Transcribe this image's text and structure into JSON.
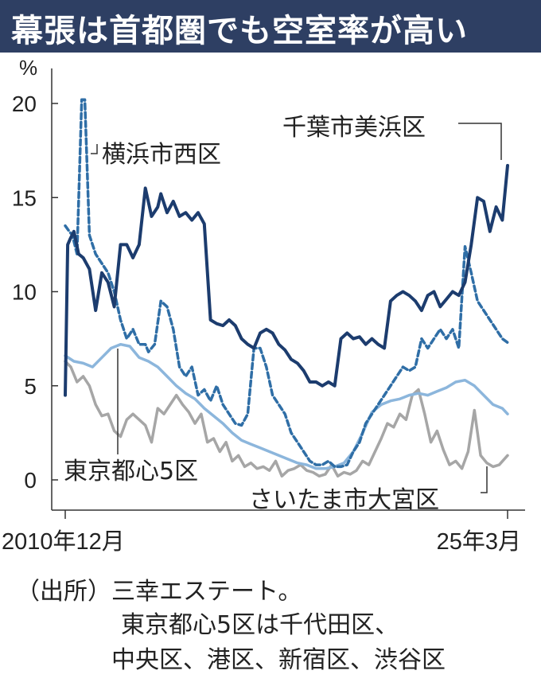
{
  "title": "幕張は首都圏でも空室率が高い",
  "chart_data": {
    "type": "line",
    "y_unit": "%",
    "ylim": [
      0,
      20
    ],
    "yticks": [
      0,
      5,
      10,
      15,
      20
    ],
    "x_start_label": "2010年12月",
    "x_end_label": "25年3月",
    "x_range": [
      "2010-12",
      "2025-03"
    ],
    "grid": false,
    "colors": {
      "mihama": "#1c3c6e",
      "nishi": "#2f6ea6",
      "tokyo5": "#8cb6dc",
      "saitama": "#a6a6a6"
    },
    "series": [
      {
        "name": "千葉市美浜区",
        "key": "mihama",
        "style": "solid",
        "x": [
          2010.92,
          2011.0,
          2011.08,
          2011.2,
          2011.35,
          2011.5,
          2011.7,
          2011.9,
          2012.1,
          2012.3,
          2012.5,
          2012.7,
          2012.9,
          2013.1,
          2013.3,
          2013.5,
          2013.7,
          2013.9,
          2014.0,
          2014.2,
          2014.4,
          2014.6,
          2014.8,
          2015.0,
          2015.2,
          2015.4,
          2015.6,
          2015.8,
          2016.0,
          2016.2,
          2016.4,
          2016.6,
          2016.8,
          2017.0,
          2017.2,
          2017.4,
          2017.6,
          2017.8,
          2018.0,
          2018.2,
          2018.4,
          2018.6,
          2018.8,
          2019.0,
          2019.2,
          2019.4,
          2019.6,
          2019.8,
          2020.0,
          2020.2,
          2020.4,
          2020.6,
          2020.8,
          2021.0,
          2021.2,
          2021.4,
          2021.6,
          2021.8,
          2022.0,
          2022.2,
          2022.4,
          2022.6,
          2022.8,
          2023.0,
          2023.2,
          2023.4,
          2023.6,
          2023.8,
          2024.0,
          2024.2,
          2024.4,
          2024.6,
          2024.8,
          2025.0,
          2025.17
        ],
        "y": [
          4.5,
          12.5,
          12.8,
          13.2,
          12.0,
          11.8,
          11.2,
          9.0,
          11.0,
          10.5,
          9.2,
          12.5,
          12.5,
          11.8,
          12.5,
          15.5,
          14.0,
          14.5,
          15.2,
          14.2,
          14.8,
          14.0,
          14.2,
          13.8,
          14.2,
          13.6,
          8.5,
          8.3,
          8.2,
          8.5,
          8.2,
          7.5,
          7.2,
          7.0,
          7.8,
          8.0,
          7.8,
          7.2,
          6.9,
          6.4,
          6.2,
          5.8,
          5.2,
          5.2,
          5.0,
          5.2,
          5.0,
          7.5,
          7.8,
          7.5,
          7.6,
          7.2,
          7.5,
          7.2,
          7.0,
          9.5,
          9.8,
          10.0,
          9.8,
          9.5,
          9.0,
          9.8,
          10.0,
          9.2,
          9.6,
          10.0,
          9.8,
          10.5,
          12.5,
          15.0,
          14.8,
          13.2,
          14.5,
          13.8,
          16.7
        ]
      },
      {
        "name": "横浜市西区",
        "key": "nishi",
        "style": "dashed",
        "x": [
          2010.92,
          2011.05,
          2011.15,
          2011.3,
          2011.45,
          2011.55,
          2011.7,
          2011.9,
          2012.1,
          2012.3,
          2012.5,
          2012.7,
          2012.9,
          2013.1,
          2013.3,
          2013.5,
          2013.6,
          2013.8,
          2014.0,
          2014.2,
          2014.4,
          2014.6,
          2014.8,
          2015.0,
          2015.2,
          2015.4,
          2015.6,
          2015.8,
          2016.0,
          2016.2,
          2016.4,
          2016.6,
          2016.8,
          2017.0,
          2017.2,
          2017.4,
          2017.6,
          2017.8,
          2018.0,
          2018.2,
          2018.4,
          2018.6,
          2018.8,
          2019.0,
          2019.2,
          2019.4,
          2019.6,
          2019.8,
          2020.0,
          2020.2,
          2020.4,
          2020.6,
          2020.8,
          2021.0,
          2021.2,
          2021.4,
          2021.6,
          2021.8,
          2022.0,
          2022.2,
          2022.4,
          2022.6,
          2022.8,
          2023.0,
          2023.2,
          2023.4,
          2023.6,
          2023.8,
          2024.0,
          2024.2,
          2024.4,
          2024.6,
          2024.8,
          2025.0,
          2025.17
        ],
        "y": [
          13.5,
          13.2,
          13.0,
          12.0,
          20.2,
          20.2,
          13.0,
          12.0,
          11.5,
          11.0,
          10.0,
          8.5,
          7.5,
          8.0,
          7.2,
          7.2,
          6.8,
          7.2,
          9.5,
          9.2,
          8.0,
          6.0,
          5.5,
          6.0,
          4.5,
          4.8,
          4.2,
          5.0,
          4.0,
          3.5,
          3.0,
          2.9,
          3.5,
          7.0,
          7.0,
          6.0,
          4.5,
          4.0,
          3.5,
          2.5,
          2.0,
          1.5,
          1.0,
          0.8,
          0.8,
          1.0,
          0.7,
          0.7,
          0.8,
          1.5,
          2.0,
          3.0,
          3.5,
          4.0,
          4.5,
          5.0,
          5.5,
          6.0,
          5.8,
          6.0,
          7.5,
          7.0,
          7.5,
          8.0,
          7.5,
          8.0,
          7.0,
          12.4,
          11.0,
          9.5,
          9.0,
          8.5,
          8.0,
          7.5,
          7.3
        ]
      },
      {
        "name": "東京都心5区",
        "key": "tokyo5",
        "style": "solid",
        "x": [
          2010.92,
          2011.2,
          2011.5,
          2011.8,
          2012.1,
          2012.4,
          2012.7,
          2013.0,
          2013.3,
          2013.6,
          2013.9,
          2014.2,
          2014.5,
          2014.8,
          2015.1,
          2015.4,
          2015.7,
          2016.0,
          2016.3,
          2016.6,
          2016.9,
          2017.2,
          2017.5,
          2017.8,
          2018.1,
          2018.4,
          2018.7,
          2019.0,
          2019.3,
          2019.6,
          2019.9,
          2020.2,
          2020.5,
          2020.8,
          2021.1,
          2021.4,
          2021.7,
          2022.0,
          2022.3,
          2022.6,
          2022.9,
          2023.2,
          2023.5,
          2023.8,
          2024.1,
          2024.4,
          2024.7,
          2025.0,
          2025.17
        ],
        "y": [
          6.6,
          6.3,
          6.2,
          6.0,
          6.5,
          7.0,
          7.2,
          7.1,
          6.5,
          6.3,
          6.0,
          5.5,
          5.0,
          4.6,
          4.3,
          3.8,
          3.4,
          3.0,
          2.5,
          2.1,
          1.9,
          1.7,
          1.5,
          1.3,
          1.1,
          0.9,
          0.8,
          0.6,
          0.6,
          0.7,
          0.9,
          1.5,
          2.5,
          3.6,
          4.0,
          4.2,
          4.3,
          4.5,
          4.6,
          4.5,
          4.7,
          4.9,
          5.2,
          5.3,
          5.0,
          4.5,
          4.0,
          3.8,
          3.5
        ]
      },
      {
        "name": "さいたま市大宮区",
        "key": "saitama",
        "style": "solid",
        "x": [
          2010.92,
          2011.1,
          2011.3,
          2011.5,
          2011.7,
          2011.9,
          2012.1,
          2012.3,
          2012.5,
          2012.7,
          2012.9,
          2013.1,
          2013.3,
          2013.5,
          2013.7,
          2013.9,
          2014.1,
          2014.3,
          2014.5,
          2014.7,
          2014.9,
          2015.1,
          2015.3,
          2015.5,
          2015.7,
          2015.9,
          2016.1,
          2016.3,
          2016.5,
          2016.7,
          2016.9,
          2017.1,
          2017.3,
          2017.5,
          2017.7,
          2017.9,
          2018.1,
          2018.3,
          2018.5,
          2018.7,
          2018.9,
          2019.1,
          2019.3,
          2019.5,
          2019.7,
          2019.9,
          2020.1,
          2020.3,
          2020.5,
          2020.7,
          2020.9,
          2021.1,
          2021.3,
          2021.5,
          2021.7,
          2021.9,
          2022.1,
          2022.3,
          2022.5,
          2022.7,
          2022.9,
          2023.1,
          2023.3,
          2023.5,
          2023.7,
          2023.9,
          2024.1,
          2024.3,
          2024.5,
          2024.7,
          2024.9,
          2025.17
        ],
        "y": [
          6.3,
          6.0,
          5.2,
          5.5,
          5.0,
          4.0,
          3.4,
          3.5,
          2.6,
          2.3,
          3.2,
          3.5,
          3.2,
          2.9,
          2.0,
          3.8,
          3.5,
          4.0,
          4.5,
          4.0,
          3.6,
          3.0,
          3.5,
          2.0,
          2.2,
          1.5,
          2.0,
          1.0,
          1.3,
          0.7,
          0.9,
          0.6,
          0.7,
          0.5,
          1.0,
          0.2,
          0.5,
          0.6,
          0.8,
          0.5,
          0.4,
          0.2,
          0.3,
          0.8,
          0.2,
          0.4,
          0.3,
          0.5,
          1.0,
          0.8,
          1.5,
          2.2,
          3.0,
          2.8,
          3.5,
          3.2,
          4.5,
          4.8,
          3.5,
          2.0,
          2.6,
          1.6,
          0.8,
          1.0,
          0.6,
          1.5,
          3.7,
          1.3,
          0.9,
          0.7,
          0.8,
          1.3
        ]
      }
    ]
  },
  "source": {
    "line1": "（出所）三幸エステート。",
    "line2": "東京都心5区は千代田区、",
    "line3": "中央区、港区、新宿区、渋谷区"
  }
}
